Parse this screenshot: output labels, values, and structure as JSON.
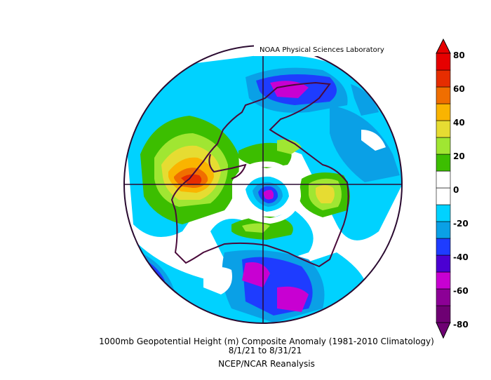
{
  "credit": "NOAA Physical Sciences Laboratory",
  "caption": {
    "title": "1000mb Geopotential Height (m) Composite Anomaly (1981-2010 Climatology)",
    "dates": "8/1/21   to 8/31/21",
    "source": "NCEP/NCAR Reanalysis"
  },
  "colorbar": {
    "labels": [
      "80",
      "60",
      "40",
      "20",
      "0",
      "-20",
      "-40",
      "-60",
      "-80"
    ],
    "colors": [
      "#6e0073",
      "#8c0096",
      "#c800d2",
      "#4b00d2",
      "#1e3cff",
      "#0aa0e6",
      "#00d2ff",
      "#ffffff",
      "#ffffff",
      "#3cbe00",
      "#a0e632",
      "#e6dc32",
      "#fab400",
      "#f06e00",
      "#e62d00",
      "#e60000"
    ]
  }
}
